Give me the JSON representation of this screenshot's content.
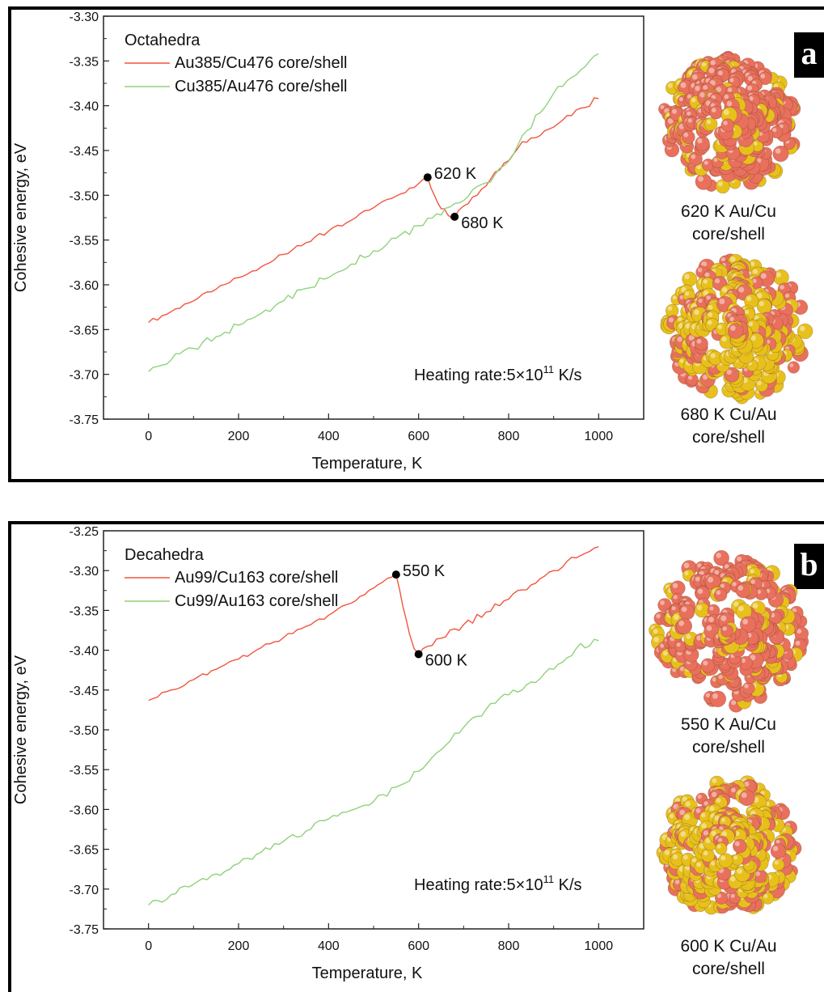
{
  "colors": {
    "series_red": "#f2553c",
    "series_green": "#8fd27a",
    "shell_au": "#e7c01c",
    "shell_cu": "#e8705c"
  },
  "panels": [
    {
      "label": "a",
      "images": [
        {
          "caption_line1": "620 K Au/Cu",
          "caption_line2": "core/shell",
          "icon": "au-core-cu-shell-cluster-icon"
        },
        {
          "caption_line1": "680 K Cu/Au",
          "caption_line2": "core/shell",
          "icon": "cu-core-au-shell-cluster-icon"
        }
      ]
    },
    {
      "label": "b",
      "images": [
        {
          "caption_line1": "550 K Au/Cu",
          "caption_line2": "core/shell",
          "icon": "au-core-cu-shell-cluster-icon"
        },
        {
          "caption_line1": "600 K Cu/Au",
          "caption_line2": "core/shell",
          "icon": "cu-core-au-shell-cluster-icon"
        }
      ]
    }
  ],
  "chart_data": [
    {
      "type": "line",
      "title": "",
      "xlabel": "Temperature, K",
      "ylabel": "Cohesive energy, eV",
      "xlim": [
        -100,
        1100
      ],
      "ylim": [
        -3.75,
        -3.3
      ],
      "xticks": [
        0,
        200,
        400,
        600,
        800,
        1000
      ],
      "yticks": [
        -3.75,
        -3.7,
        -3.65,
        -3.6,
        -3.55,
        -3.5,
        -3.45,
        -3.4,
        -3.35,
        -3.3
      ],
      "grid": false,
      "legend_title": "Octahedra",
      "legend_position": "top-left",
      "annotation": {
        "text": "Heating rate:5×10",
        "sup": "11",
        "unit": " K/s"
      },
      "markers": [
        {
          "x": 620,
          "y": -3.48,
          "label": "620 K"
        },
        {
          "x": 680,
          "y": -3.524,
          "label": "680 K"
        }
      ],
      "series": [
        {
          "name": "Au385/Cu476 core/shell",
          "color": "#f2553c",
          "points": [
            [
              0,
              -3.642
            ],
            [
              50,
              -3.63
            ],
            [
              100,
              -3.618
            ],
            [
              150,
              -3.605
            ],
            [
              200,
              -3.592
            ],
            [
              250,
              -3.58
            ],
            [
              300,
              -3.566
            ],
            [
              350,
              -3.553
            ],
            [
              400,
              -3.54
            ],
            [
              450,
              -3.528
            ],
            [
              500,
              -3.514
            ],
            [
              550,
              -3.501
            ],
            [
              600,
              -3.487
            ],
            [
              620,
              -3.48
            ],
            [
              635,
              -3.5
            ],
            [
              650,
              -3.515
            ],
            [
              665,
              -3.522
            ],
            [
              680,
              -3.524
            ],
            [
              700,
              -3.512
            ],
            [
              730,
              -3.5
            ],
            [
              760,
              -3.482
            ],
            [
              790,
              -3.464
            ],
            [
              820,
              -3.448
            ],
            [
              850,
              -3.436
            ],
            [
              880,
              -3.428
            ],
            [
              910,
              -3.42
            ],
            [
              940,
              -3.411
            ],
            [
              970,
              -3.402
            ],
            [
              1000,
              -3.392
            ]
          ]
        },
        {
          "name": "Cu385/Au476 core/shell",
          "color": "#8fd27a",
          "points": [
            [
              0,
              -3.697
            ],
            [
              50,
              -3.684
            ],
            [
              100,
              -3.671
            ],
            [
              150,
              -3.658
            ],
            [
              200,
              -3.645
            ],
            [
              250,
              -3.632
            ],
            [
              300,
              -3.618
            ],
            [
              350,
              -3.604
            ],
            [
              400,
              -3.592
            ],
            [
              450,
              -3.577
            ],
            [
              500,
              -3.562
            ],
            [
              550,
              -3.548
            ],
            [
              600,
              -3.534
            ],
            [
              650,
              -3.522
            ],
            [
              700,
              -3.506
            ],
            [
              750,
              -3.486
            ],
            [
              780,
              -3.47
            ],
            [
              810,
              -3.455
            ],
            [
              840,
              -3.428
            ],
            [
              870,
              -3.408
            ],
            [
              900,
              -3.386
            ],
            [
              930,
              -3.372
            ],
            [
              960,
              -3.36
            ],
            [
              980,
              -3.35
            ],
            [
              1000,
              -3.342
            ]
          ]
        }
      ]
    },
    {
      "type": "line",
      "title": "",
      "xlabel": "Temperature, K",
      "ylabel": "Cohesive energy, eV",
      "xlim": [
        -100,
        1100
      ],
      "ylim": [
        -3.75,
        -3.25
      ],
      "xticks": [
        0,
        200,
        400,
        600,
        800,
        1000
      ],
      "yticks": [
        -3.75,
        -3.7,
        -3.65,
        -3.6,
        -3.55,
        -3.5,
        -3.45,
        -3.4,
        -3.35,
        -3.3,
        -3.25
      ],
      "grid": false,
      "legend_title": "Decahedra",
      "legend_position": "top-left",
      "annotation": {
        "text": "Heating rate:5×10",
        "sup": "11",
        "unit": " K/s"
      },
      "markers": [
        {
          "x": 550,
          "y": -3.305,
          "label": "550 K"
        },
        {
          "x": 600,
          "y": -3.405,
          "label": "600 K"
        }
      ],
      "series": [
        {
          "name": "Au99/Cu163 core/shell",
          "color": "#f2553c",
          "points": [
            [
              0,
              -3.463
            ],
            [
              50,
              -3.45
            ],
            [
              100,
              -3.437
            ],
            [
              150,
              -3.424
            ],
            [
              200,
              -3.411
            ],
            [
              250,
              -3.397
            ],
            [
              300,
              -3.384
            ],
            [
              350,
              -3.37
            ],
            [
              400,
              -3.356
            ],
            [
              450,
              -3.341
            ],
            [
              500,
              -3.322
            ],
            [
              530,
              -3.31
            ],
            [
              550,
              -3.305
            ],
            [
              565,
              -3.345
            ],
            [
              580,
              -3.38
            ],
            [
              590,
              -3.398
            ],
            [
              600,
              -3.405
            ],
            [
              620,
              -3.395
            ],
            [
              650,
              -3.385
            ],
            [
              700,
              -3.368
            ],
            [
              750,
              -3.352
            ],
            [
              800,
              -3.336
            ],
            [
              850,
              -3.318
            ],
            [
              900,
              -3.3
            ],
            [
              950,
              -3.284
            ],
            [
              1000,
              -3.27
            ]
          ]
        },
        {
          "name": "Cu99/Au163 core/shell",
          "color": "#8fd27a",
          "points": [
            [
              0,
              -3.72
            ],
            [
              50,
              -3.707
            ],
            [
              100,
              -3.694
            ],
            [
              150,
              -3.681
            ],
            [
              200,
              -3.668
            ],
            [
              250,
              -3.654
            ],
            [
              300,
              -3.64
            ],
            [
              350,
              -3.627
            ],
            [
              400,
              -3.612
            ],
            [
              450,
              -3.601
            ],
            [
              500,
              -3.59
            ],
            [
              550,
              -3.572
            ],
            [
              600,
              -3.552
            ],
            [
              650,
              -3.525
            ],
            [
              700,
              -3.497
            ],
            [
              750,
              -3.474
            ],
            [
              800,
              -3.456
            ],
            [
              850,
              -3.44
            ],
            [
              900,
              -3.424
            ],
            [
              950,
              -3.398
            ],
            [
              1000,
              -3.388
            ]
          ]
        }
      ]
    }
  ]
}
